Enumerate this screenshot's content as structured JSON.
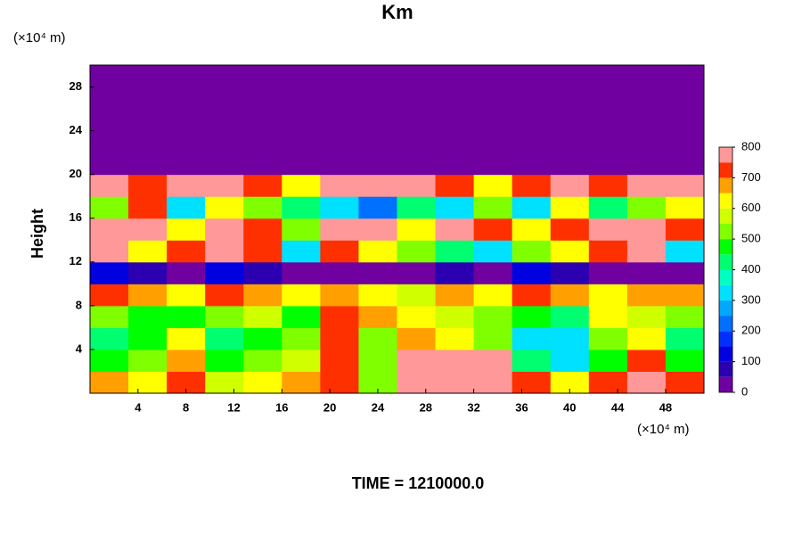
{
  "chart_data": {
    "type": "contour",
    "title": "Km",
    "y_unit_label": "(×10⁴ m)",
    "x_unit_label": "(×10⁴ m)",
    "y_label": "Height",
    "footer": "TIME = 1210000.0",
    "xlim": [
      0,
      51.2
    ],
    "ylim": [
      0,
      30
    ],
    "xticks": [
      4,
      8,
      12,
      16,
      20,
      24,
      28,
      32,
      36,
      40,
      44,
      48
    ],
    "yticks": [
      4,
      8,
      12,
      16,
      20,
      24,
      28
    ],
    "levels": [
      0,
      50,
      100,
      150,
      200,
      250,
      300,
      350,
      400,
      450,
      500,
      550,
      600,
      650,
      700,
      750,
      800
    ],
    "colors": [
      "#7000a0",
      "#2a00b0",
      "#0000e0",
      "#0030ff",
      "#0070ff",
      "#00a8ff",
      "#00e0ff",
      "#00ffc0",
      "#00ff70",
      "#00ff00",
      "#80ff00",
      "#d0ff00",
      "#ffff00",
      "#ffa000",
      "#ff3000",
      "#ff9898"
    ],
    "colorbar_ticks": [
      0,
      100,
      200,
      300,
      400,
      500,
      600,
      700,
      800
    ],
    "x_edges": [
      0,
      3.2,
      6.4,
      9.6,
      12.8,
      16,
      19.2,
      22.4,
      25.6,
      28.8,
      32,
      35.2,
      38.4,
      41.6,
      44.8,
      48,
      51.2
    ],
    "y_edges": [
      0,
      2,
      4,
      6,
      8,
      10,
      12,
      14,
      16,
      18,
      20,
      30
    ],
    "z": [
      [
        650,
        600,
        700,
        550,
        600,
        650,
        700,
        500,
        780,
        780,
        780,
        700,
        600,
        700,
        760,
        700
      ],
      [
        450,
        500,
        650,
        450,
        500,
        550,
        700,
        500,
        780,
        780,
        760,
        400,
        300,
        450,
        700,
        450
      ],
      [
        420,
        450,
        600,
        420,
        450,
        500,
        740,
        500,
        650,
        600,
        500,
        300,
        320,
        500,
        600,
        420
      ],
      [
        500,
        480,
        450,
        500,
        550,
        480,
        700,
        650,
        600,
        550,
        500,
        450,
        400,
        600,
        550,
        500
      ],
      [
        700,
        650,
        600,
        700,
        650,
        600,
        650,
        600,
        550,
        650,
        600,
        700,
        650,
        600,
        650,
        650
      ],
      [
        100,
        50,
        40,
        100,
        50,
        40,
        0,
        0,
        0,
        50,
        40,
        100,
        50,
        0,
        0,
        0
      ],
      [
        780,
        600,
        700,
        780,
        700,
        300,
        700,
        600,
        500,
        400,
        300,
        500,
        600,
        700,
        780,
        300
      ],
      [
        780,
        780,
        600,
        780,
        700,
        500,
        780,
        780,
        600,
        780,
        700,
        600,
        700,
        780,
        780,
        700
      ],
      [
        500,
        700,
        300,
        600,
        500,
        400,
        300,
        200,
        400,
        300,
        500,
        300,
        600,
        400,
        500,
        600
      ],
      [
        780,
        700,
        780,
        780,
        700,
        600,
        780,
        780,
        780,
        700,
        600,
        700,
        780,
        700,
        760,
        780
      ],
      [
        0,
        0,
        0,
        0,
        0,
        0,
        0,
        0,
        0,
        0,
        0,
        0,
        0,
        0,
        0,
        0
      ]
    ]
  }
}
